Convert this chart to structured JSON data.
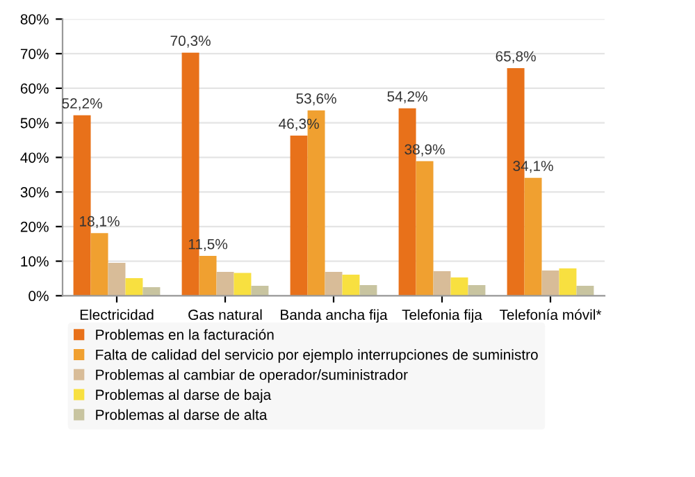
{
  "chart_data": {
    "type": "bar",
    "categories": [
      "Electricidad",
      "Gas natural",
      "Banda ancha fija",
      "Telefonia fija",
      "Telefonía móvil*"
    ],
    "series": [
      {
        "name": "Problemas en la facturación",
        "color": "#e8711a",
        "values": [
          52.2,
          70.3,
          46.3,
          54.2,
          65.8
        ],
        "value_labels": [
          "52,2%",
          "70,3%",
          "46,3%",
          "54,2%",
          "65,8%"
        ]
      },
      {
        "name": "Falta de calidad del servicio por ejemplo interrupciones de suministro",
        "color": "#f0a030",
        "values": [
          18.1,
          11.5,
          53.6,
          38.9,
          34.1
        ],
        "value_labels": [
          "18,1%",
          "11,5%",
          "53,6%",
          "38,9%",
          "34,1%"
        ]
      },
      {
        "name": "Problemas al cambiar de operador/suministrador",
        "color": "#d8bc98",
        "values": [
          9.5,
          6.9,
          6.9,
          7.1,
          7.3
        ]
      },
      {
        "name": "Problemas al darse de baja",
        "color": "#f8e040",
        "values": [
          5.1,
          6.6,
          6.1,
          5.3,
          7.9
        ]
      },
      {
        "name": "Problemas al darse de alta",
        "color": "#c8c4a0",
        "values": [
          2.5,
          2.9,
          3.1,
          3.1,
          2.9
        ]
      }
    ],
    "ylim": [
      0,
      80
    ],
    "yticks": [
      {
        "value": 0,
        "label": "0%"
      },
      {
        "value": 10,
        "label": "10%"
      },
      {
        "value": 20,
        "label": "20%"
      },
      {
        "value": 30,
        "label": "30%"
      },
      {
        "value": 40,
        "label": "40%"
      },
      {
        "value": 50,
        "label": "50%"
      },
      {
        "value": 60,
        "label": "60%"
      },
      {
        "value": 70,
        "label": "70%"
      },
      {
        "value": 80,
        "label": "80%"
      }
    ],
    "grid": "y",
    "legend": "bottom"
  }
}
